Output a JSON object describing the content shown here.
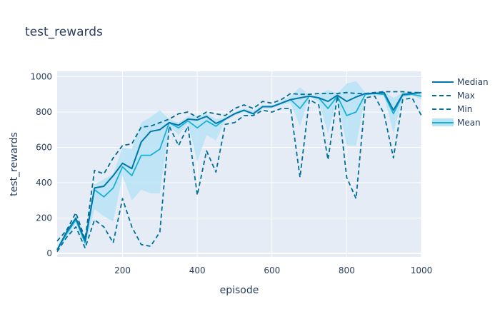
{
  "chart_data": {
    "type": "line",
    "title": "test_rewards",
    "xlabel": "episode",
    "ylabel": "test_rewards",
    "xlim": [
      25,
      1000
    ],
    "ylim": [
      -20,
      1030
    ],
    "grid": true,
    "legend_position": "top-right",
    "x_ticks": [
      200,
      400,
      600,
      800,
      1000
    ],
    "y_ticks": [
      0,
      200,
      400,
      600,
      800,
      1000
    ],
    "x": [
      25,
      50,
      75,
      100,
      125,
      150,
      175,
      200,
      225,
      250,
      275,
      300,
      325,
      350,
      375,
      400,
      425,
      450,
      475,
      500,
      525,
      550,
      575,
      600,
      625,
      650,
      675,
      700,
      725,
      750,
      775,
      800,
      825,
      850,
      875,
      900,
      925,
      950,
      975,
      1000
    ],
    "series": [
      {
        "name": "Median",
        "style": "solid",
        "values": [
          20,
          120,
          200,
          70,
          370,
          380,
          440,
          510,
          480,
          630,
          690,
          700,
          740,
          725,
          760,
          755,
          775,
          735,
          760,
          790,
          810,
          790,
          830,
          830,
          850,
          870,
          880,
          890,
          880,
          860,
          895,
          860,
          885,
          905,
          905,
          910,
          810,
          900,
          905,
          910
        ]
      },
      {
        "name": "Max",
        "style": "dash",
        "values": [
          70,
          130,
          230,
          80,
          470,
          450,
          540,
          610,
          620,
          715,
          720,
          740,
          760,
          790,
          800,
          770,
          800,
          790,
          780,
          820,
          840,
          820,
          860,
          850,
          870,
          905,
          900,
          900,
          905,
          905,
          905,
          910,
          905,
          905,
          910,
          915,
          915,
          915,
          910,
          910
        ]
      },
      {
        "name": "Min",
        "style": "dash",
        "values": [
          10,
          90,
          150,
          30,
          190,
          150,
          60,
          310,
          150,
          50,
          40,
          120,
          720,
          610,
          720,
          330,
          580,
          460,
          730,
          740,
          780,
          780,
          810,
          800,
          820,
          820,
          430,
          870,
          840,
          530,
          890,
          430,
          310,
          880,
          890,
          790,
          540,
          870,
          880,
          780
        ]
      },
      {
        "name": "Mean",
        "style": "band",
        "values": [
          20,
          110,
          190,
          60,
          360,
          320,
          370,
          490,
          440,
          555,
          555,
          590,
          740,
          710,
          750,
          710,
          750,
          720,
          760,
          790,
          810,
          790,
          830,
          830,
          850,
          870,
          820,
          890,
          880,
          820,
          890,
          780,
          800,
          900,
          905,
          900,
          790,
          895,
          900,
          890
        ],
        "upper": [
          30,
          130,
          210,
          80,
          390,
          420,
          450,
          600,
          590,
          740,
          770,
          810,
          760,
          740,
          775,
          780,
          790,
          760,
          770,
          800,
          820,
          810,
          840,
          840,
          860,
          890,
          940,
          895,
          900,
          925,
          905,
          960,
          975,
          910,
          915,
          915,
          880,
          910,
          910,
          910
        ],
        "lower": [
          10,
          90,
          170,
          40,
          250,
          210,
          180,
          440,
          300,
          360,
          340,
          340,
          720,
          670,
          735,
          520,
          670,
          640,
          750,
          780,
          800,
          780,
          820,
          820,
          840,
          850,
          720,
          885,
          860,
          680,
          875,
          610,
          610,
          890,
          895,
          890,
          680,
          880,
          895,
          870
        ]
      }
    ],
    "colors": {
      "median": "#0077a8",
      "max": "#006c8f",
      "min": "#00709a",
      "mean": "#17b1d6",
      "band": "#b8e3f5",
      "plot_bg": "#e5ecf6",
      "grid": "#ffffff",
      "text": "#2a3f5f"
    }
  }
}
